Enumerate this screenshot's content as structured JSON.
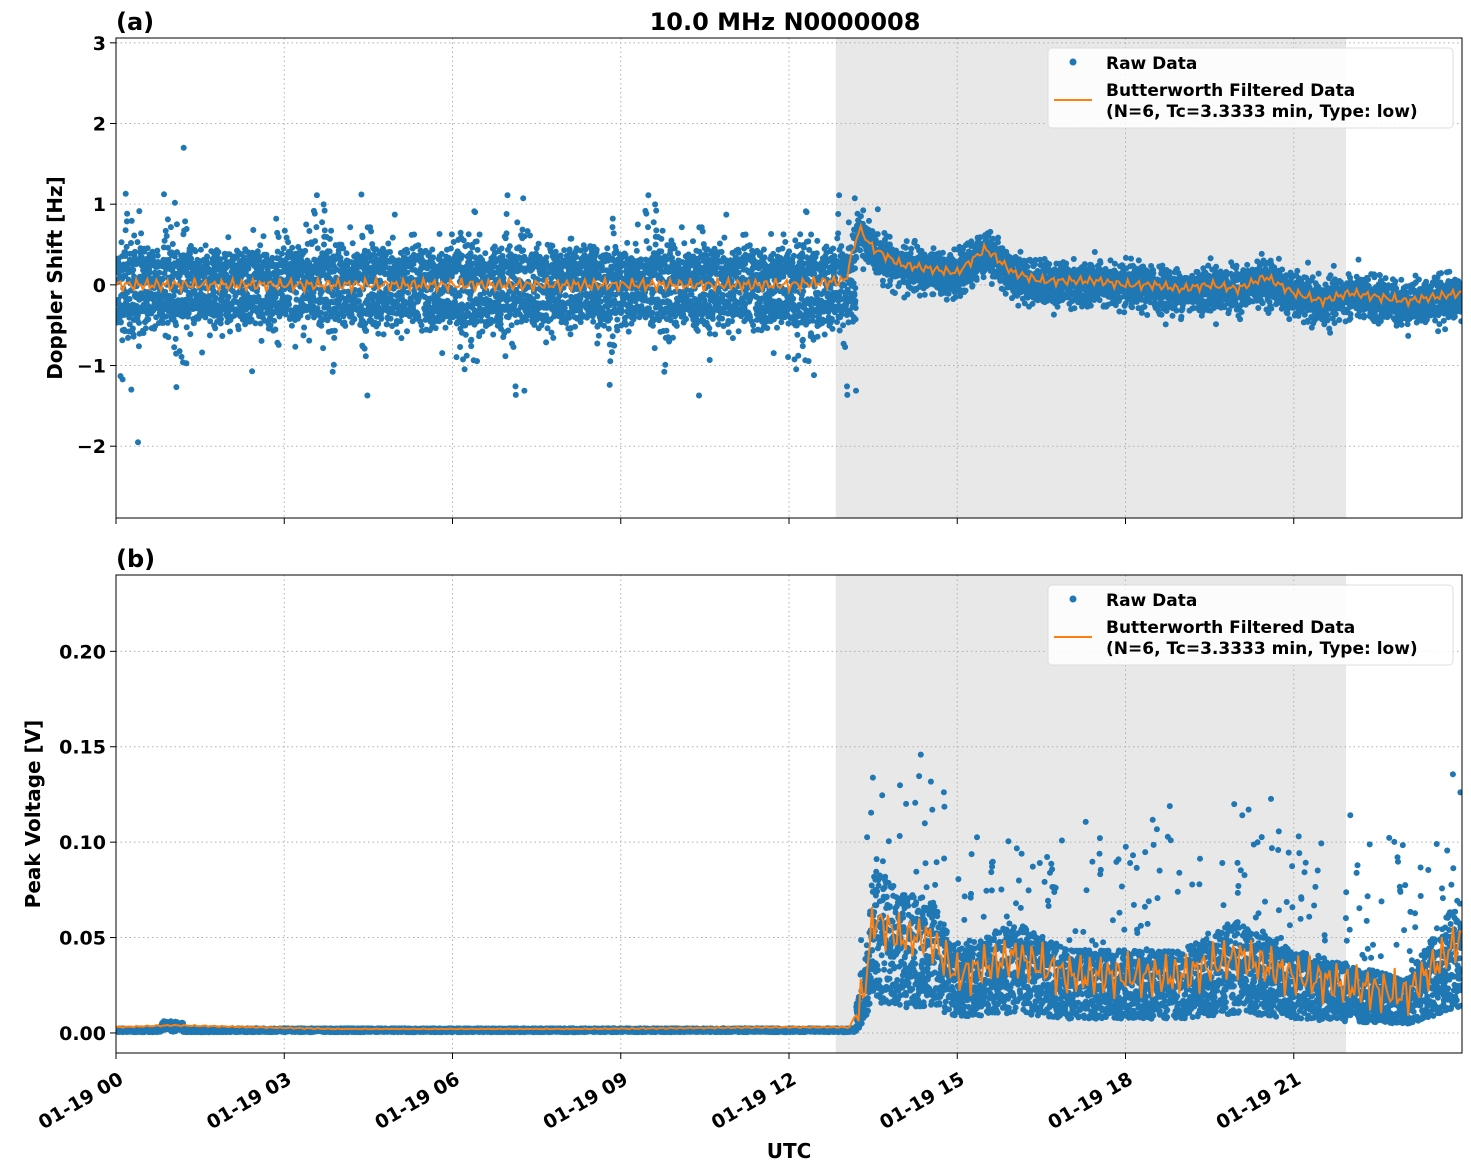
{
  "title": "10.0 MHz N0000008",
  "shaded_interval": [
    "01-19 12:50",
    "01-19 21:56"
  ],
  "colors": {
    "raw": "#1f77b4",
    "filtered": "#ff7f0e",
    "shade": "#e8e8e8",
    "grid": "#b0b0b0"
  },
  "chart_data": [
    {
      "type": "scatter",
      "panel_label": "(a)",
      "xlabel": "",
      "ylabel": "Doppler Shift [Hz]",
      "xlim": [
        "01-19 00:00",
        "01-20 00:00"
      ],
      "ylim": [
        -2.89,
        3.06
      ],
      "yticks": [
        -2,
        -1,
        0,
        1,
        2,
        3
      ],
      "ytick_labels": [
        "−2",
        "−1",
        "0",
        "1",
        "2",
        "3"
      ],
      "grid": true,
      "legend_position": "top-right",
      "series": [
        {
          "name": "Raw Data",
          "marker": "dot",
          "spread_before_event_hz": 1.5,
          "spread_after_event_hz": 0.3
        },
        {
          "name": "Butterworth Filtered Data\n(N=6, Tc=3.3333 min, Type: low)",
          "marker": "line",
          "x": [
            "01-19 00:00",
            "01-19 02:00",
            "01-19 04:00",
            "01-19 06:00",
            "01-19 08:00",
            "01-19 10:00",
            "01-19 12:00",
            "01-19 13:00",
            "01-19 13:15",
            "01-19 13:30",
            "01-19 14:00",
            "01-19 14:30",
            "01-19 15:00",
            "01-19 15:30",
            "01-19 16:00",
            "01-19 16:30",
            "01-19 17:00",
            "01-19 17:30",
            "01-19 18:00",
            "01-19 18:30",
            "01-19 19:00",
            "01-19 19:30",
            "01-19 20:00",
            "01-19 20:30",
            "01-19 21:00",
            "01-19 21:30",
            "01-19 22:00",
            "01-19 22:30",
            "01-19 23:00",
            "01-19 23:30",
            "01-20 00:00"
          ],
          "y": [
            0.0,
            0.0,
            0.0,
            0.0,
            0.0,
            0.0,
            0.0,
            0.05,
            0.7,
            0.45,
            0.25,
            0.2,
            0.15,
            0.45,
            0.15,
            0.05,
            0.05,
            0.05,
            0.0,
            0.0,
            -0.05,
            0.0,
            -0.05,
            0.1,
            -0.1,
            -0.2,
            -0.1,
            -0.15,
            -0.2,
            -0.15,
            -0.1
          ]
        }
      ]
    },
    {
      "type": "scatter",
      "panel_label": "(b)",
      "xlabel": "UTC",
      "ylabel": "Peak Voltage [V]",
      "xlim": [
        "01-19 00:00",
        "01-20 00:00"
      ],
      "ylim": [
        -0.0105,
        0.24
      ],
      "yticks": [
        0.0,
        0.05,
        0.1,
        0.15,
        0.2
      ],
      "ytick_labels": [
        "0.00",
        "0.05",
        "0.10",
        "0.15",
        "0.20"
      ],
      "xtick_labels": [
        "01-19 00",
        "01-19 03",
        "01-19 06",
        "01-19 09",
        "01-19 12",
        "01-19 15",
        "01-19 18",
        "01-19 21"
      ],
      "grid": true,
      "legend_position": "top-right",
      "series": [
        {
          "name": "Raw Data",
          "marker": "dot"
        },
        {
          "name": "Butterworth Filtered Data\n(N=6, Tc=3.3333 min, Type: low)",
          "marker": "line",
          "x": [
            "01-19 00:00",
            "01-19 01:00",
            "01-19 04:00",
            "01-19 08:00",
            "01-19 12:00",
            "01-19 13:05",
            "01-19 13:20",
            "01-19 13:30",
            "01-19 14:00",
            "01-19 14:30",
            "01-19 15:00",
            "01-19 15:30",
            "01-19 16:00",
            "01-19 17:00",
            "01-19 18:00",
            "01-19 19:00",
            "01-19 20:00",
            "01-19 21:00",
            "01-19 22:00",
            "01-19 23:00",
            "01-19 23:30",
            "01-20 00:00"
          ],
          "y": [
            0.003,
            0.004,
            0.002,
            0.002,
            0.003,
            0.003,
            0.02,
            0.06,
            0.05,
            0.05,
            0.03,
            0.035,
            0.04,
            0.03,
            0.03,
            0.03,
            0.04,
            0.03,
            0.025,
            0.02,
            0.035,
            0.05
          ]
        }
      ]
    }
  ],
  "legend": {
    "raw": "Raw Data",
    "filtered_line1": "Butterworth Filtered Data",
    "filtered_line2": "(N=6, Tc=3.3333 min, Type: low)"
  }
}
